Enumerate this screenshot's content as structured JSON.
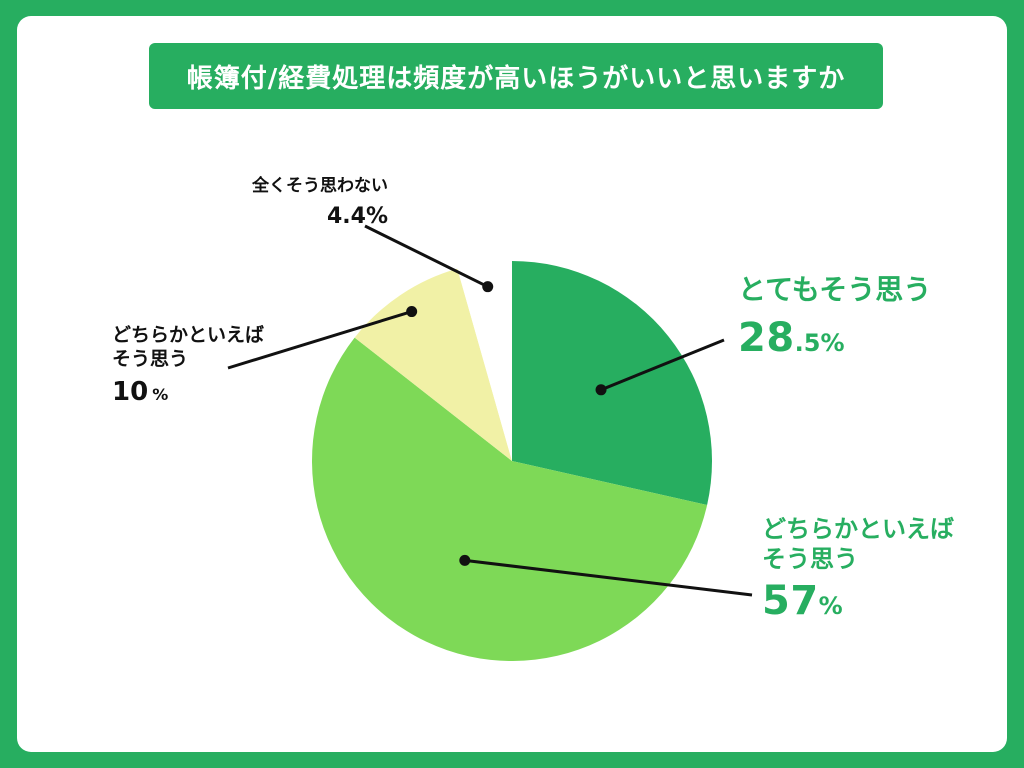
{
  "title": "帳簿付/経費処理は頻度が高いほうがいいと思いますか",
  "colors": {
    "brand": "#27ae60",
    "slice_colors": [
      "#27ae60",
      "#7ed957",
      "#f1f1a6",
      "#ffffff"
    ]
  },
  "chart_data": {
    "type": "pie",
    "slices": [
      {
        "label": "とてもそう思う",
        "value": 28.5,
        "number": "28",
        "unit": ".5%"
      },
      {
        "label": "どちらかといえば\nそう思う",
        "value": 57,
        "number": "57",
        "unit": "%"
      },
      {
        "label": "どちらかといえば\nそう思う",
        "value": 10,
        "number": "10",
        "unit": "%"
      },
      {
        "label": "全くそう思わない",
        "value": 4.4,
        "number": "4.4",
        "unit": "%"
      }
    ],
    "start": "12 o'clock",
    "direction": "clockwise"
  },
  "labels": {
    "s0": {
      "line1": "とてもそう思う",
      "number": "28",
      "unit": ".5%"
    },
    "s1": {
      "line1": "どちらかといえば",
      "line2": "そう思う",
      "number": "57",
      "unit": "%"
    },
    "s2": {
      "line1": "どちらかといえば",
      "line2": "そう思う",
      "number": "10",
      "unit": "%"
    },
    "s3": {
      "line1": "全くそう思わない",
      "number": "4.4%"
    }
  }
}
